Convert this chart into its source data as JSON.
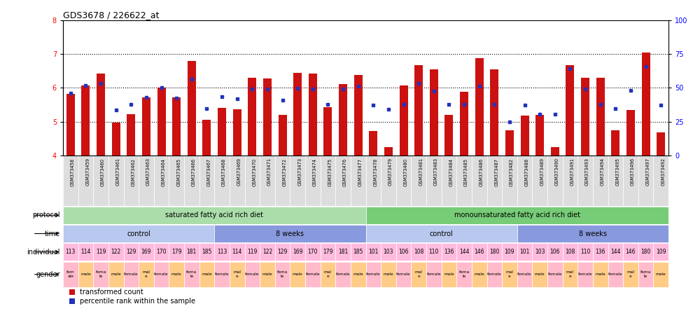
{
  "title": "GDS3678 / 226622_at",
  "samples": [
    "GSM373458",
    "GSM373459",
    "GSM373460",
    "GSM373461",
    "GSM373462",
    "GSM373463",
    "GSM373464",
    "GSM373465",
    "GSM373466",
    "GSM373467",
    "GSM373468",
    "GSM373469",
    "GSM373470",
    "GSM373471",
    "GSM373472",
    "GSM373473",
    "GSM373474",
    "GSM373475",
    "GSM373476",
    "GSM373477",
    "GSM373478",
    "GSM373479",
    "GSM373480",
    "GSM373481",
    "GSM373483",
    "GSM373484",
    "GSM373485",
    "GSM373486",
    "GSM373487",
    "GSM373482",
    "GSM373488",
    "GSM373489",
    "GSM373490",
    "GSM373491",
    "GSM373493",
    "GSM373494",
    "GSM373495",
    "GSM373496",
    "GSM373497",
    "GSM373492"
  ],
  "bar_values": [
    5.83,
    6.07,
    6.42,
    4.97,
    5.22,
    5.72,
    6.0,
    5.72,
    6.8,
    5.05,
    5.4,
    5.37,
    6.3,
    6.28,
    5.2,
    6.45,
    6.42,
    5.43,
    6.12,
    6.38,
    4.72,
    4.25,
    6.07,
    6.67,
    6.55,
    5.2,
    5.88,
    6.87,
    6.55,
    4.75,
    5.18,
    5.19,
    4.25,
    6.68,
    6.3,
    6.3,
    4.75,
    5.35,
    7.05,
    4.68
  ],
  "blue_values": [
    5.85,
    6.07,
    6.13,
    5.35,
    5.52,
    5.72,
    6.0,
    5.7,
    6.25,
    5.38,
    5.73,
    5.68,
    5.97,
    5.97,
    5.63,
    5.98,
    5.97,
    5.52,
    5.97,
    6.05,
    5.48,
    5.37,
    5.52,
    6.13,
    5.9,
    5.52,
    5.52,
    6.05,
    5.52,
    5.0,
    5.48,
    5.22,
    5.22,
    6.57,
    5.97,
    5.52,
    5.38,
    5.93,
    6.62,
    5.48
  ],
  "ylim": [
    4.0,
    8.0
  ],
  "y_ticks_left": [
    4,
    5,
    6,
    7,
    8
  ],
  "y_ticks_right": [
    0,
    25,
    50,
    75,
    100
  ],
  "bar_color": "#cc1111",
  "blue_color": "#2233bb",
  "bar_bottom": 4.0,
  "individual_values": [
    "113",
    "114",
    "119",
    "122",
    "129",
    "169",
    "170",
    "179",
    "181",
    "185",
    "113",
    "114",
    "119",
    "122",
    "129",
    "169",
    "170",
    "179",
    "181",
    "185",
    "101",
    "103",
    "106",
    "108",
    "110",
    "136",
    "144",
    "146",
    "180",
    "109",
    "101",
    "103",
    "106",
    "108",
    "110",
    "136",
    "144",
    "146",
    "180",
    "109"
  ],
  "gender_per_sample": [
    "fem\nale",
    "male",
    "fema\nle",
    "male",
    "female",
    "mal\ne",
    "female",
    "male",
    "fema\nle",
    "male",
    "female",
    "mal\ne",
    "female",
    "male",
    "fema\nle",
    "male",
    "female",
    "mal\ne",
    "female",
    "male",
    "female",
    "male",
    "female",
    "mal\ne",
    "female",
    "male",
    "fema\nle",
    "male",
    "female",
    "mal\ne",
    "female",
    "male",
    "female",
    "mal\ne",
    "female",
    "male",
    "female",
    "mal\ne",
    "fema\nle",
    "male"
  ],
  "gender_colors": [
    "#ffbbcc",
    "#ffcc88",
    "#ffbbcc",
    "#ffcc88",
    "#ffbbcc",
    "#ffcc88",
    "#ffbbcc",
    "#ffcc88",
    "#ffbbcc",
    "#ffcc88",
    "#ffbbcc",
    "#ffcc88",
    "#ffbbcc",
    "#ffcc88",
    "#ffbbcc",
    "#ffcc88",
    "#ffbbcc",
    "#ffcc88",
    "#ffbbcc",
    "#ffcc88",
    "#ffbbcc",
    "#ffcc88",
    "#ffbbcc",
    "#ffcc88",
    "#ffbbcc",
    "#ffcc88",
    "#ffbbcc",
    "#ffcc88",
    "#ffbbcc",
    "#ffcc88",
    "#ffbbcc",
    "#ffcc88",
    "#ffbbcc",
    "#ffcc88",
    "#ffbbcc",
    "#ffcc88",
    "#ffbbcc",
    "#ffcc88",
    "#ffbbcc",
    "#ffcc88"
  ],
  "bg_color": "#ffffff"
}
